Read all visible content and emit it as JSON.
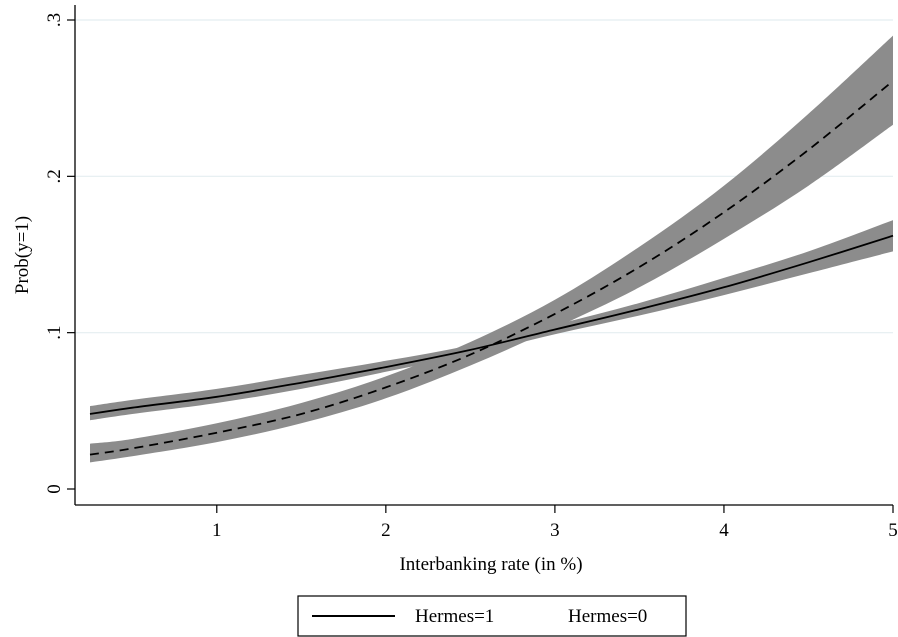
{
  "chart_data": {
    "type": "line",
    "title": "",
    "xlabel": "Interbanking rate (in %)",
    "ylabel": "Prob(y=1)",
    "xlim": [
      0.25,
      5.0
    ],
    "ylim": [
      0.0,
      0.3
    ],
    "x_ticks": [
      1,
      2,
      3,
      4,
      5
    ],
    "x_tick_labels": [
      "1",
      "2",
      "3",
      "4",
      "5"
    ],
    "y_ticks": [
      0,
      0.1,
      0.2,
      0.3
    ],
    "y_tick_labels": [
      "0",
      ".1",
      ".2",
      ".3"
    ],
    "grid": "horizontal",
    "legend_position": "bottom",
    "band_color": "#8c8c8c",
    "line_color": "#000000",
    "x": [
      0.25,
      0.5,
      1.0,
      1.5,
      2.0,
      2.5,
      3.0,
      3.5,
      4.0,
      4.5,
      5.0
    ],
    "series": [
      {
        "name": "Hermes=1",
        "style": "solid",
        "values": [
          0.048,
          0.052,
          0.059,
          0.068,
          0.078,
          0.089,
          0.102,
          0.115,
          0.129,
          0.145,
          0.162
        ],
        "lower": [
          0.044,
          0.048,
          0.055,
          0.064,
          0.075,
          0.086,
          0.099,
          0.111,
          0.124,
          0.138,
          0.152
        ],
        "upper": [
          0.053,
          0.057,
          0.064,
          0.073,
          0.082,
          0.092,
          0.105,
          0.119,
          0.135,
          0.152,
          0.172
        ]
      },
      {
        "name": "Hermes=0",
        "style": "dashed",
        "values": [
          0.022,
          0.026,
          0.036,
          0.048,
          0.065,
          0.086,
          0.112,
          0.142,
          0.177,
          0.217,
          0.261
        ],
        "lower": [
          0.017,
          0.021,
          0.03,
          0.042,
          0.058,
          0.079,
          0.103,
          0.129,
          0.16,
          0.194,
          0.233
        ],
        "upper": [
          0.029,
          0.032,
          0.042,
          0.055,
          0.072,
          0.094,
          0.121,
          0.155,
          0.194,
          0.24,
          0.29
        ]
      }
    ]
  }
}
